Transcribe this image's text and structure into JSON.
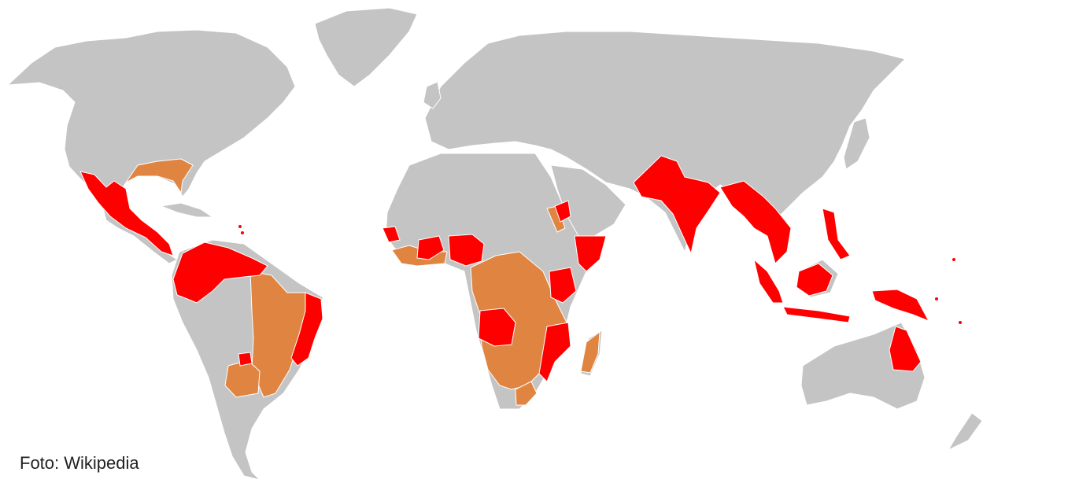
{
  "map": {
    "colors": {
      "land": "#c4c4c4",
      "primary_zone": "#ff0000",
      "secondary_zone": "#e08541",
      "borders": "#ffffff",
      "background": "#ffffff"
    }
  },
  "caption": {
    "credit": "Foto: Wikipedia"
  }
}
